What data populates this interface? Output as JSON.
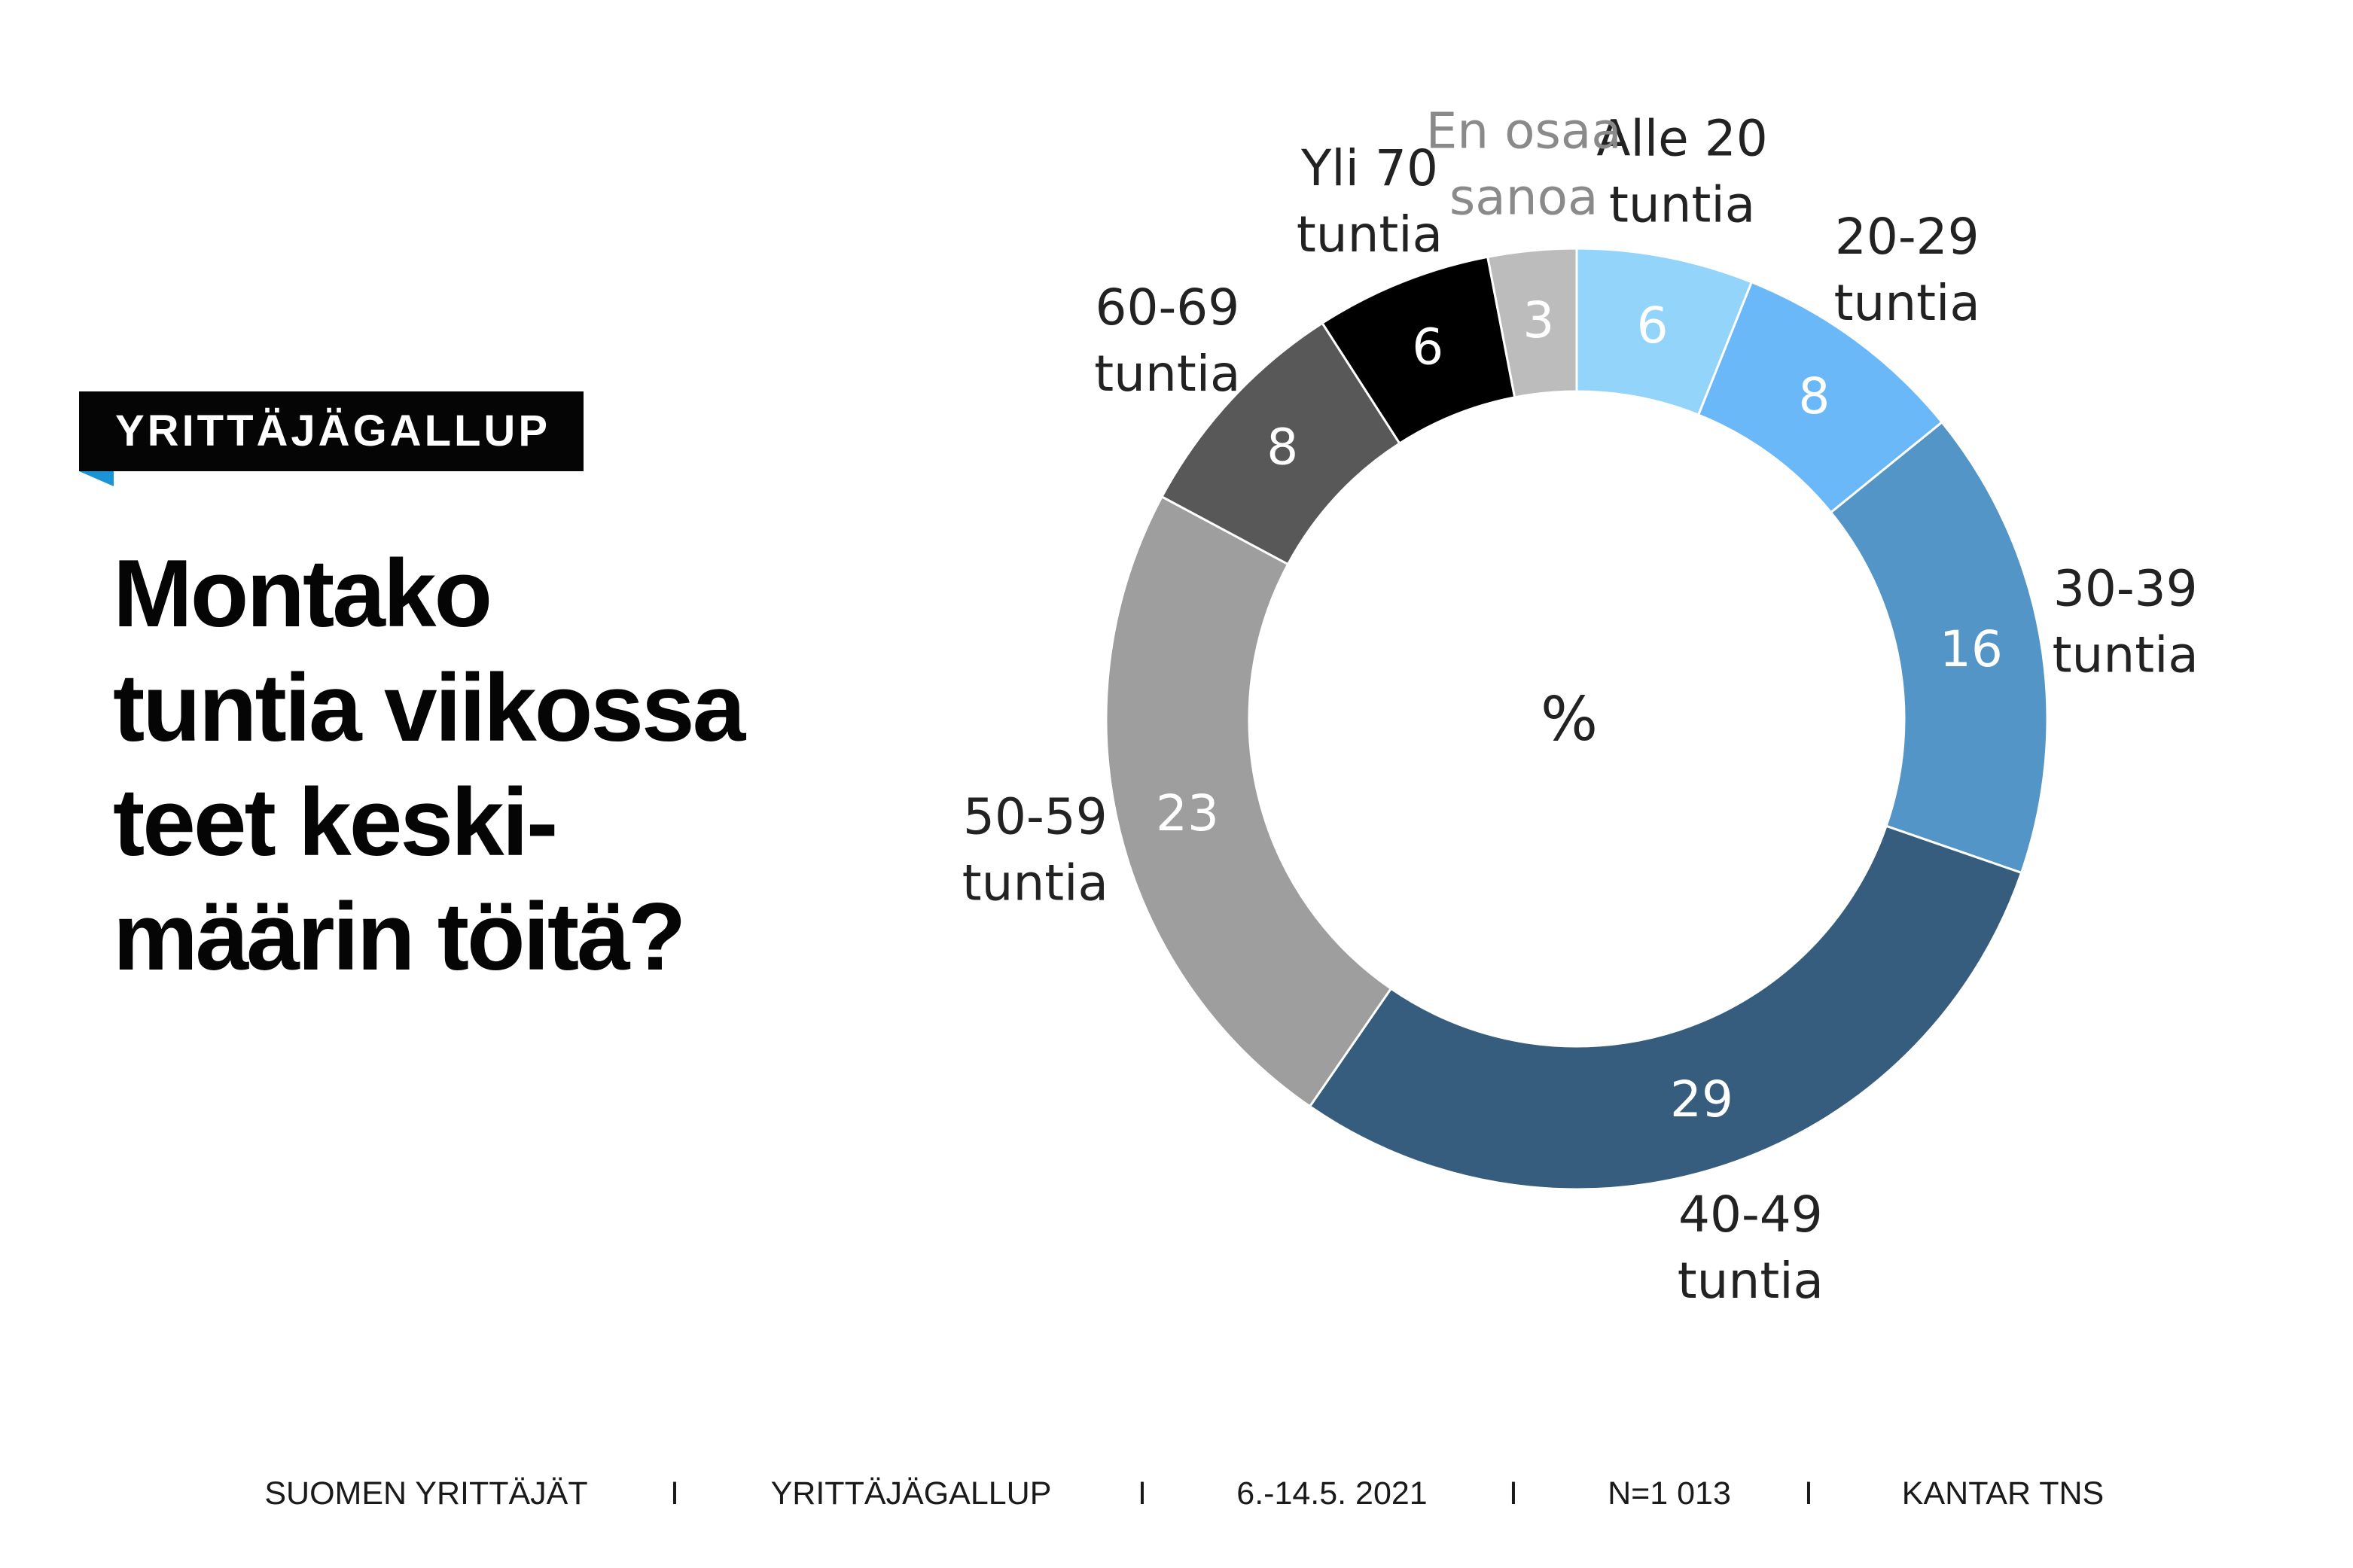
{
  "badge": {
    "label": "YRITTÄJÄGALLUP"
  },
  "question": {
    "lines": [
      "Montako",
      "tuntia viikossa",
      "teet keski-",
      "määrin töitä?"
    ]
  },
  "chart_data": {
    "type": "pie",
    "donut": true,
    "center_label": "%",
    "unit": "%",
    "slices": [
      {
        "label": [
          "Alle 20",
          "tuntia"
        ],
        "value": 6,
        "color": "#93d4fb",
        "value_color": "#ffffff",
        "label_color": "#222222"
      },
      {
        "label": [
          "20-29",
          "tuntia"
        ],
        "value": 8,
        "color": "#6bb8f9",
        "value_color": "#ffffff",
        "label_color": "#222222"
      },
      {
        "label": [
          "30-39",
          "tuntia"
        ],
        "value": 16,
        "color": "#5495c8",
        "value_color": "#ffffff",
        "label_color": "#222222"
      },
      {
        "label": [
          "40-49",
          "tuntia"
        ],
        "value": 29,
        "color": "#365d7d",
        "value_color": "#ffffff",
        "label_color": "#222222"
      },
      {
        "label": [
          "50-59",
          "tuntia"
        ],
        "value": 23,
        "color": "#9e9e9e",
        "value_color": "#ffffff",
        "label_color": "#222222"
      },
      {
        "label": [
          "60-69",
          "tuntia"
        ],
        "value": 8,
        "color": "#585858",
        "value_color": "#ffffff",
        "label_color": "#222222"
      },
      {
        "label": [
          "Yli 70",
          "tuntia"
        ],
        "value": 6,
        "color": "#000000",
        "value_color": "#ffffff",
        "label_color": "#222222"
      },
      {
        "label": [
          "En osaa",
          "sanoa"
        ],
        "value": 3,
        "color": "#bcbcbc",
        "value_color": "#ffffff",
        "label_color": "#8a8a8a"
      }
    ]
  },
  "footer": {
    "items": [
      "SUOMEN YRITTÄJÄT",
      "I",
      "YRITTÄJÄGALLUP",
      "I",
      "6.-14.5. 2021",
      "I",
      "N=1 013",
      "I",
      "KANTAR TNS"
    ]
  }
}
